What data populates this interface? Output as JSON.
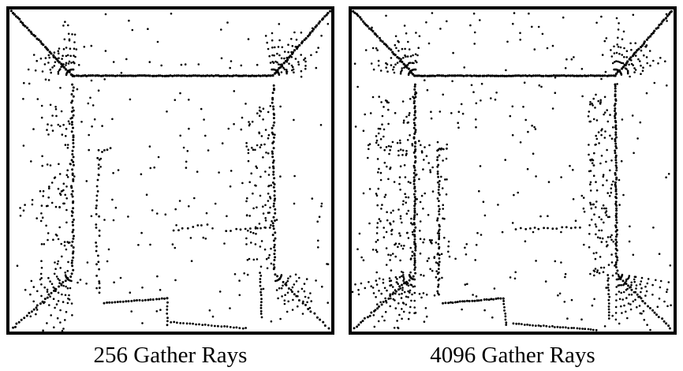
{
  "panels": [
    {
      "caption": "256 Gather Rays",
      "density": 256
    },
    {
      "caption": "4096 Gather Rays",
      "density": 4096
    }
  ],
  "colors": {
    "dot": "#000000",
    "frame": "#000000",
    "background": "#ffffff"
  }
}
